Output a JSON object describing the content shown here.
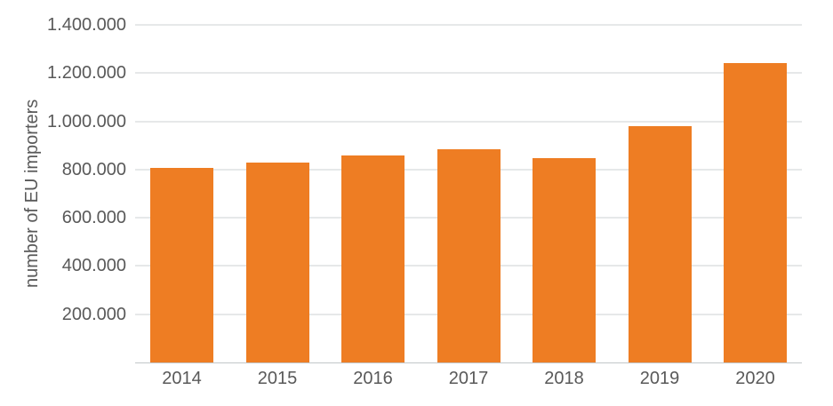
{
  "colors": {
    "bar": "#ee7d23",
    "text": "#595959",
    "gridline": "#ccd0d3",
    "axis_line": "#c2c6c9",
    "background": "#ffffff"
  },
  "chart_data": {
    "type": "bar",
    "title": "",
    "xlabel": "",
    "ylabel": "number of EU importers",
    "categories": [
      "2014",
      "2015",
      "2016",
      "2017",
      "2018",
      "2019",
      "2020"
    ],
    "values": [
      808000,
      829000,
      857000,
      884000,
      848000,
      980000,
      1243000
    ],
    "ylim": [
      0,
      1400000
    ],
    "ytick_values": [
      200000,
      400000,
      600000,
      800000,
      1000000,
      1200000,
      1400000
    ],
    "ytick_labels": [
      "200.000",
      "400.000",
      "600.000",
      "800.000",
      "1.000.000",
      "1.200.000",
      "1.400.000"
    ],
    "grid": "horizontal",
    "legend": "none",
    "bar_color": "#ee7d23"
  }
}
